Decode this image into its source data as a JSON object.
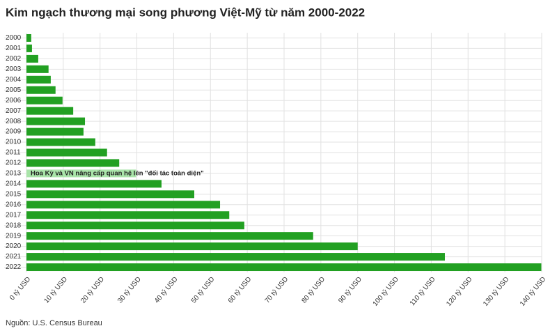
{
  "chart_data": {
    "type": "barh",
    "title": "Kim ngạch thương mại song phương Việt-Mỹ từ năm 2000-2022",
    "source": "Nguồn: U.S. Census Bureau",
    "categories": [
      "2000",
      "2001",
      "2002",
      "2003",
      "2004",
      "2005",
      "2006",
      "2007",
      "2008",
      "2009",
      "2010",
      "2011",
      "2012",
      "2013",
      "2014",
      "2015",
      "2016",
      "2017",
      "2018",
      "2019",
      "2020",
      "2021",
      "2022"
    ],
    "values": [
      1.3,
      1.5,
      3.2,
      6.0,
      6.6,
      7.9,
      9.8,
      12.7,
      15.9,
      15.5,
      18.7,
      21.9,
      25.2,
      29.8,
      36.7,
      45.6,
      52.6,
      55.1,
      59.2,
      77.9,
      90.0,
      113.7,
      139.9
    ],
    "colors": [
      "#22a022",
      "#22a022",
      "#22a022",
      "#22a022",
      "#22a022",
      "#22a022",
      "#22a022",
      "#22a022",
      "#22a022",
      "#22a022",
      "#22a022",
      "#22a022",
      "#22a022",
      "#a9e4a9",
      "#22a022",
      "#22a022",
      "#22a022",
      "#22a022",
      "#22a022",
      "#22a022",
      "#22a022",
      "#22a022",
      "#22a022"
    ],
    "annotation": {
      "text": "Hoa Kỳ và VN nâng cấp quan hệ lên \"đối tác toàn diện\"",
      "category": "2013"
    },
    "xlim": [
      0,
      140
    ],
    "xticks": [
      {
        "value": 0,
        "label": "0 tỷ USD"
      },
      {
        "value": 10,
        "label": "10 tỷ USD"
      },
      {
        "value": 20,
        "label": "20 tỷ USD"
      },
      {
        "value": 30,
        "label": "30 tỷ USD"
      },
      {
        "value": 40,
        "label": "40 tỷ USD"
      },
      {
        "value": 50,
        "label": "50 tỷ USD"
      },
      {
        "value": 60,
        "label": "60 tỷ USD"
      },
      {
        "value": 70,
        "label": "70 tỷ USD"
      },
      {
        "value": 80,
        "label": "80 tỷ USD"
      },
      {
        "value": 90,
        "label": "90 tỷ USD"
      },
      {
        "value": 100,
        "label": "100 tỷ USD"
      },
      {
        "value": 110,
        "label": "110 tỷ USD"
      },
      {
        "value": 120,
        "label": "120 tỷ USD"
      },
      {
        "value": 130,
        "label": "130 tỷ USD"
      },
      {
        "value": 140,
        "label": "140 tỷ USD"
      }
    ],
    "grid": true
  }
}
